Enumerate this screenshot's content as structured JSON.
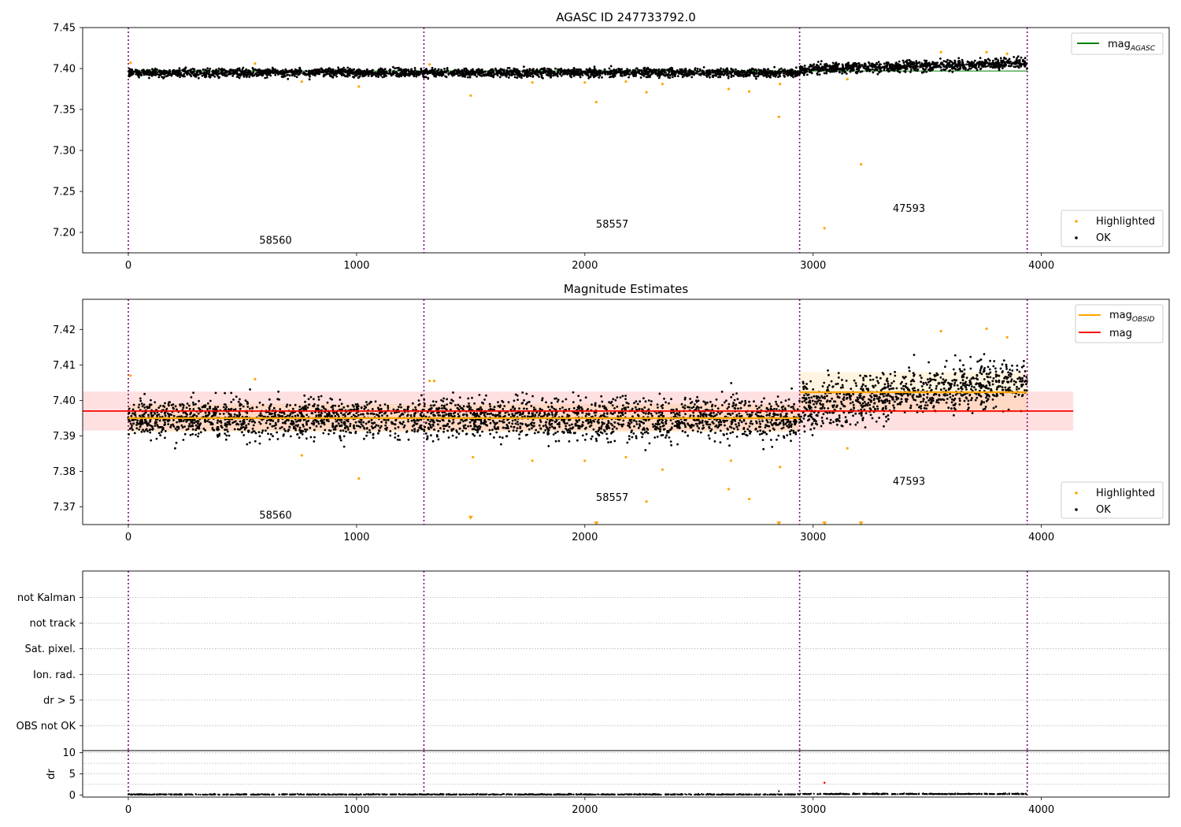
{
  "figure": {
    "background": "#ffffff"
  },
  "chart_data": [
    {
      "id": "agasc",
      "type": "scatter",
      "title": "AGASC ID 247733792.0",
      "xlim": [
        -200,
        4560
      ],
      "ylim": [
        7.175,
        7.45
      ],
      "xticks": [
        0,
        1000,
        2000,
        3000,
        4000
      ],
      "yticks": [
        7.2,
        7.25,
        7.3,
        7.35,
        7.4,
        7.45
      ],
      "vlines": [
        0,
        1295,
        2941,
        3938
      ],
      "obsid_labels": [
        {
          "text": "58560",
          "x": 645,
          "y": 7.186
        },
        {
          "text": "58557",
          "x": 2120,
          "y": 7.206
        },
        {
          "text": "47593",
          "x": 3420,
          "y": 7.225
        }
      ],
      "series": [
        {
          "name": "OK",
          "color": "#000000",
          "segments": [
            {
              "x0": 0,
              "x1": 1295,
              "mean": 7.395,
              "spread": 0.004
            },
            {
              "x0": 1295,
              "x1": 2941,
              "mean": 7.395,
              "spread": 0.004
            },
            {
              "x0": 2941,
              "x1": 3938,
              "mean": 7.402,
              "spread": 0.005
            }
          ]
        },
        {
          "name": "Highlighted",
          "color": "#ffa500",
          "points": [
            [
              10,
              7.407
            ],
            [
              555,
              7.406
            ],
            [
              760,
              7.384
            ],
            [
              1010,
              7.378
            ],
            [
              1320,
              7.405
            ],
            [
              1500,
              7.367
            ],
            [
              1770,
              7.383
            ],
            [
              2000,
              7.383
            ],
            [
              2050,
              7.359
            ],
            [
              2180,
              7.384
            ],
            [
              2270,
              7.371
            ],
            [
              2340,
              7.381
            ],
            [
              2630,
              7.375
            ],
            [
              2720,
              7.372
            ],
            [
              2850,
              7.341
            ],
            [
              2855,
              7.381
            ],
            [
              3050,
              7.205
            ],
            [
              3150,
              7.387
            ],
            [
              3210,
              7.283
            ],
            [
              3560,
              7.42
            ],
            [
              3760,
              7.42
            ],
            [
              3850,
              7.418
            ]
          ]
        }
      ],
      "lines": [
        {
          "name": "mag_AGASC",
          "color": "#008000",
          "y": 7.397
        }
      ],
      "legends": [
        {
          "placement": "top-right",
          "entries": [
            {
              "label": "mag",
              "sub": "AGASC",
              "kind": "line",
              "color": "#008000"
            }
          ]
        },
        {
          "placement": "bottom-right",
          "entries": [
            {
              "label": "Highlighted",
              "kind": "dot",
              "color": "#ffa500"
            },
            {
              "label": "OK",
              "kind": "dot",
              "color": "#000000"
            }
          ]
        }
      ]
    },
    {
      "id": "estimates",
      "type": "scatter",
      "title": "Magnitude Estimates",
      "xlim": [
        -200,
        4560
      ],
      "ylim": [
        7.365,
        7.4285
      ],
      "xticks": [
        0,
        1000,
        2000,
        3000,
        4000
      ],
      "yticks": [
        7.37,
        7.38,
        7.39,
        7.4,
        7.41,
        7.42
      ],
      "vlines": [
        0,
        1295,
        2941,
        3938
      ],
      "obsid_labels": [
        {
          "text": "58560",
          "x": 645,
          "y": 7.3667
        },
        {
          "text": "58557",
          "x": 2120,
          "y": 7.3717
        },
        {
          "text": "47593",
          "x": 3420,
          "y": 7.3762
        }
      ],
      "mag": {
        "value": 7.397,
        "band": [
          7.3915,
          7.4025
        ],
        "x0": -200,
        "x1": 4140,
        "color": "#ff0000"
      },
      "mag_obsid": [
        {
          "x0": 0,
          "x1": 2941,
          "value": 7.395,
          "band": [
            7.391,
            7.399
          ]
        },
        {
          "x0": 2941,
          "x1": 3938,
          "value": 7.4023,
          "band": [
            7.3965,
            7.408
          ]
        }
      ],
      "series": [
        {
          "name": "OK",
          "color": "#000000"
        },
        {
          "name": "Highlighted",
          "color": "#ffa500",
          "points": [
            [
              10,
              7.407
            ],
            [
              555,
              7.406
            ],
            [
              760,
              7.3845
            ],
            [
              1010,
              7.378
            ],
            [
              1320,
              7.4055
            ],
            [
              1340,
              7.4055
            ],
            [
              1510,
              7.384
            ],
            [
              1770,
              7.383
            ],
            [
              2000,
              7.383
            ],
            [
              2180,
              7.384
            ],
            [
              2270,
              7.3715
            ],
            [
              2340,
              7.3805
            ],
            [
              2630,
              7.375
            ],
            [
              2640,
              7.383
            ],
            [
              2720,
              7.3722
            ],
            [
              2855,
              7.3812
            ],
            [
              3150,
              7.3865
            ],
            [
              3560,
              7.4195
            ],
            [
              3760,
              7.4202
            ],
            [
              3850,
              7.4178
            ]
          ]
        },
        {
          "name": "Highlighted (below range)",
          "color": "#ffa500",
          "points": [
            [
              1500,
              7.3668
            ],
            [
              2050,
              7.3652
            ],
            [
              2850,
              7.3652
            ],
            [
              3050,
              7.3652
            ],
            [
              3210,
              7.3652
            ]
          ]
        }
      ],
      "legends": [
        {
          "placement": "top-right",
          "entries": [
            {
              "label": "mag",
              "sub": "OBSID",
              "kind": "line",
              "color": "#ffa500"
            },
            {
              "label": "mag",
              "kind": "line",
              "color": "#ff0000"
            }
          ]
        },
        {
          "placement": "bottom-right",
          "entries": [
            {
              "label": "Highlighted",
              "kind": "dot",
              "color": "#ffa500"
            },
            {
              "label": "OK",
              "kind": "dot",
              "color": "#000000"
            }
          ]
        }
      ]
    },
    {
      "id": "flags",
      "type": "scatter",
      "xlim": [
        -200,
        4560
      ],
      "categories": [
        "not Kalman",
        "not track",
        "Sat. pixel.",
        "Ion. rad.",
        "dr > 5",
        "OBS not OK"
      ],
      "vlines": [
        0,
        1295,
        2941,
        3938
      ],
      "grid": true
    },
    {
      "id": "dr",
      "type": "scatter",
      "ylabel": "dr",
      "xlim": [
        -200,
        4560
      ],
      "ylim": [
        -0.5,
        10.5
      ],
      "xticks": [
        0,
        1000,
        2000,
        3000,
        4000
      ],
      "yticks": [
        0,
        5,
        10
      ],
      "grid": true,
      "vlines": [
        0,
        1295,
        2941,
        3938
      ],
      "series": [
        {
          "name": "OK",
          "color": "#000000",
          "mean": 0.2
        },
        {
          "name": "Highlighted",
          "color": "#ff0000",
          "points": [
            [
              3050,
              2.9
            ]
          ]
        }
      ]
    }
  ]
}
